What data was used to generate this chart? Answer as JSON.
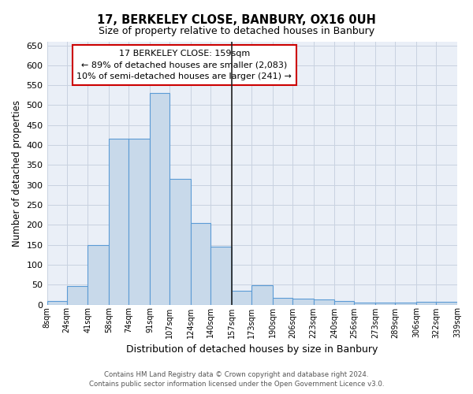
{
  "title": "17, BERKELEY CLOSE, BANBURY, OX16 0UH",
  "subtitle": "Size of property relative to detached houses in Banbury",
  "xlabel": "Distribution of detached houses by size in Banbury",
  "ylabel": "Number of detached properties",
  "footer_line1": "Contains HM Land Registry data © Crown copyright and database right 2024.",
  "footer_line2": "Contains public sector information licensed under the Open Government Licence v3.0.",
  "annotation_title": "17 BERKELEY CLOSE: 159sqm",
  "annotation_line1": "← 89% of detached houses are smaller (2,083)",
  "annotation_line2": "10% of semi-detached houses are larger (241) →",
  "property_line_x": 10,
  "bar_categories": [
    "8sqm",
    "24sqm",
    "41sqm",
    "58sqm",
    "74sqm",
    "91sqm",
    "107sqm",
    "124sqm",
    "140sqm",
    "157sqm",
    "173sqm",
    "190sqm",
    "206sqm",
    "223sqm",
    "240sqm",
    "256sqm",
    "273sqm",
    "289sqm",
    "306sqm",
    "322sqm",
    "339sqm"
  ],
  "bar_values": [
    8,
    46,
    150,
    415,
    415,
    530,
    315,
    205,
    145,
    35,
    48,
    17,
    14,
    13,
    8,
    5,
    5,
    5,
    7,
    7,
    7
  ],
  "bar_color": "#c8d9ea",
  "bar_edgecolor": "#5b9bd5",
  "background_color": "#ffffff",
  "plot_bg_color": "#eaeff7",
  "grid_color": "#c8d2e0",
  "ylim": [
    0,
    660
  ],
  "yticks": [
    0,
    50,
    100,
    150,
    200,
    250,
    300,
    350,
    400,
    450,
    500,
    550,
    600,
    650
  ],
  "vline_color": "#222222",
  "vline_bin_index": 10,
  "ann_box_edgecolor": "#cc0000",
  "figsize": [
    6.0,
    5.0
  ],
  "dpi": 100
}
